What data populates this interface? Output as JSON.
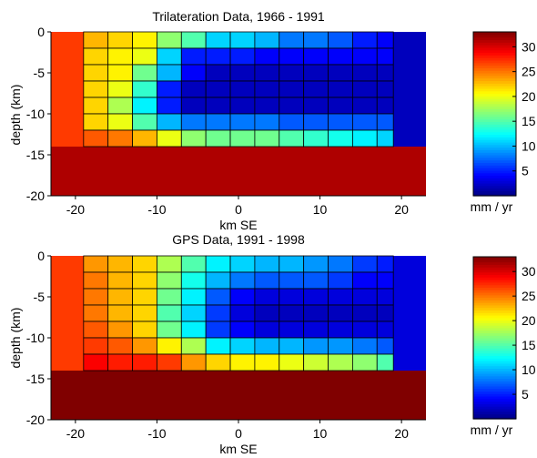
{
  "chart_data": [
    {
      "type": "heatmap",
      "title": "Trilateration Data, 1966 - 1991",
      "xlabel": "km SE",
      "ylabel": "depth (km)",
      "xlim": [
        -23,
        23
      ],
      "ylim": [
        -20,
        0
      ],
      "xticks": [
        -20,
        -10,
        0,
        10,
        20
      ],
      "yticks": [
        0,
        -5,
        -10,
        -15,
        -20
      ],
      "colorbar": {
        "label": "mm / yr",
        "clim": [
          0,
          33
        ],
        "ticks": [
          5,
          10,
          15,
          20,
          25,
          30
        ]
      },
      "left_zone": {
        "x": [
          -23,
          -19
        ],
        "depth": [
          0,
          -14
        ],
        "value": 27
      },
      "right_zone": {
        "x": [
          19,
          23
        ],
        "depth": [
          0,
          -14
        ],
        "value": 2
      },
      "bottom_zone": {
        "x": [
          -23,
          23
        ],
        "depth": [
          -14,
          -20
        ],
        "value": 31.5
      },
      "grid": {
        "x_edges": [
          -19,
          -16,
          -13,
          -10,
          -7,
          -4,
          -1,
          2,
          5,
          8,
          11,
          14,
          17,
          19
        ],
        "depth_edges": [
          0,
          -2,
          -4,
          -6,
          -8,
          -10,
          -12,
          -14
        ],
        "values": [
          [
            23,
            22,
            21,
            17,
            15,
            11,
            11,
            10,
            8,
            8,
            7,
            5,
            4
          ],
          [
            22,
            21,
            20,
            11,
            5,
            5,
            5,
            4,
            4,
            4,
            4,
            4,
            4
          ],
          [
            22,
            21,
            16,
            10,
            4,
            2,
            2,
            2,
            2,
            2,
            2,
            2,
            2
          ],
          [
            22,
            20,
            14,
            5,
            2,
            2,
            2,
            2,
            2,
            2,
            2,
            2,
            2
          ],
          [
            22,
            18,
            12,
            5,
            2,
            2,
            2,
            2,
            2,
            2,
            2,
            2,
            2
          ],
          [
            22,
            20,
            15,
            10,
            8,
            8,
            8,
            8,
            7,
            7,
            7,
            7,
            7
          ],
          [
            26,
            25,
            23,
            20,
            17,
            16,
            16,
            16,
            15,
            14,
            13,
            12,
            11
          ]
        ]
      }
    },
    {
      "type": "heatmap",
      "title": "GPS Data, 1991 - 1998",
      "xlabel": "km SE",
      "ylabel": "depth (km)",
      "xlim": [
        -23,
        23
      ],
      "ylim": [
        -20,
        0
      ],
      "xticks": [
        -20,
        -10,
        0,
        10,
        20
      ],
      "yticks": [
        0,
        -5,
        -10,
        -15,
        -20
      ],
      "colorbar": {
        "label": "mm / yr",
        "clim": [
          0,
          33
        ],
        "ticks": [
          5,
          10,
          15,
          20,
          25,
          30
        ]
      },
      "left_zone": {
        "x": [
          -23,
          -19
        ],
        "depth": [
          0,
          -14
        ],
        "value": 27
      },
      "right_zone": {
        "x": [
          19,
          23
        ],
        "depth": [
          0,
          -14
        ],
        "value": 3
      },
      "bottom_zone": {
        "x": [
          -23,
          23
        ],
        "depth": [
          -14,
          -20
        ],
        "value": 33
      },
      "grid": {
        "x_edges": [
          -19,
          -16,
          -13,
          -10,
          -7,
          -4,
          -1,
          2,
          5,
          8,
          11,
          14,
          17,
          19
        ],
        "depth_edges": [
          0,
          -2,
          -4,
          -6,
          -8,
          -10,
          -12,
          -14
        ],
        "values": [
          [
            24,
            23,
            22,
            18,
            15,
            12,
            11,
            10,
            10,
            9,
            8,
            6,
            5
          ],
          [
            25,
            23,
            22,
            17,
            13,
            10,
            8,
            7,
            7,
            7,
            6,
            4,
            4
          ],
          [
            25,
            23,
            22,
            16,
            12,
            7,
            4,
            3,
            3,
            3,
            3,
            3,
            3
          ],
          [
            25,
            23,
            22,
            15,
            11,
            6,
            3,
            2,
            2,
            2,
            2,
            2,
            2
          ],
          [
            26,
            24,
            22,
            16,
            12,
            6,
            4,
            3,
            3,
            3,
            3,
            3,
            3
          ],
          [
            27,
            26,
            24,
            21,
            18,
            12,
            11,
            10,
            10,
            9,
            9,
            8,
            7
          ],
          [
            29,
            28,
            28,
            27,
            24,
            22,
            21,
            21,
            20,
            19,
            18,
            17,
            15
          ]
        ]
      }
    }
  ]
}
